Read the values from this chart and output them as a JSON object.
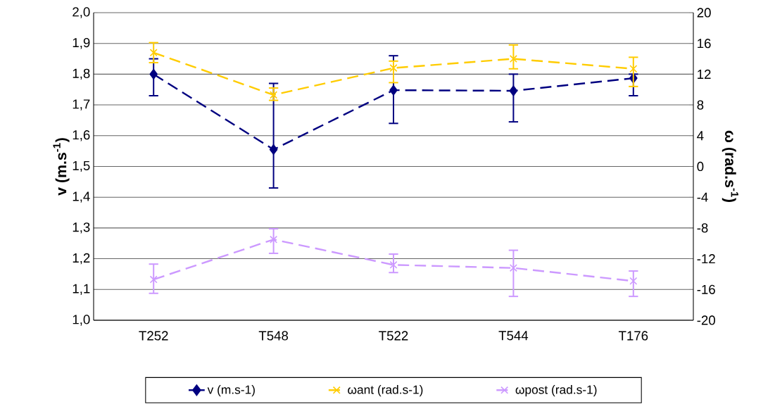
{
  "chart_data": {
    "type": "line",
    "categories": [
      "T252",
      "T548",
      "T522",
      "T544",
      "T176"
    ],
    "ylabel": "v (m.s$^{-1}$)",
    "y2label": "ω (rad.s$^{-1}$)",
    "ylim": [
      1.0,
      2.0
    ],
    "yticks": [
      {
        "value": 1.0,
        "label": "1,0"
      },
      {
        "value": 1.1,
        "label": "1,1"
      },
      {
        "value": 1.2,
        "label": "1,2"
      },
      {
        "value": 1.3,
        "label": "1,3"
      },
      {
        "value": 1.4,
        "label": "1,4"
      },
      {
        "value": 1.5,
        "label": "1,5"
      },
      {
        "value": 1.6,
        "label": "1,6"
      },
      {
        "value": 1.7,
        "label": "1,7"
      },
      {
        "value": 1.8,
        "label": "1,8"
      },
      {
        "value": 1.9,
        "label": "1,9"
      },
      {
        "value": 2.0,
        "label": "2,0"
      }
    ],
    "y2lim": [
      -20,
      20
    ],
    "y2ticks": [
      -20,
      -16,
      -12,
      -8,
      -4,
      0,
      4,
      8,
      12,
      16,
      20
    ],
    "grid": "y",
    "legend": "bottom",
    "line_style": "dashed",
    "series": [
      {
        "name": "v (m.s-1)",
        "color": "#000080",
        "marker": "diamond",
        "values": [
          1.8,
          1.555,
          1.748,
          1.746,
          1.787
        ],
        "errors": [
          [
            1.73,
            1.85
          ],
          [
            1.43,
            1.77
          ],
          [
            1.64,
            1.86
          ],
          [
            1.645,
            1.8
          ],
          [
            1.73,
            1.8
          ]
        ]
      },
      {
        "name": "ωant (rad.s-1)",
        "color": "#ffcc00",
        "marker": "cross",
        "axis": "y2",
        "values": [
          14.8,
          9.3,
          12.8,
          14.0,
          12.7
        ],
        "errors": [
          [
            13.5,
            16.1
          ],
          [
            8.6,
            10.2
          ],
          [
            10.9,
            13.7
          ],
          [
            12.7,
            15.8
          ],
          [
            10.4,
            14.2
          ]
        ]
      },
      {
        "name": "ωpost (rad.s-1)",
        "color": "#cc99ff",
        "marker": "cross",
        "axis": "y2",
        "values": [
          -14.7,
          -9.5,
          -12.8,
          -13.2,
          -14.9
        ],
        "errors": [
          [
            -16.5,
            -12.7
          ],
          [
            -11.3,
            -8.1
          ],
          [
            -13.8,
            -11.4
          ],
          [
            -16.9,
            -10.9
          ],
          [
            -16.9,
            -13.6
          ]
        ]
      }
    ]
  }
}
